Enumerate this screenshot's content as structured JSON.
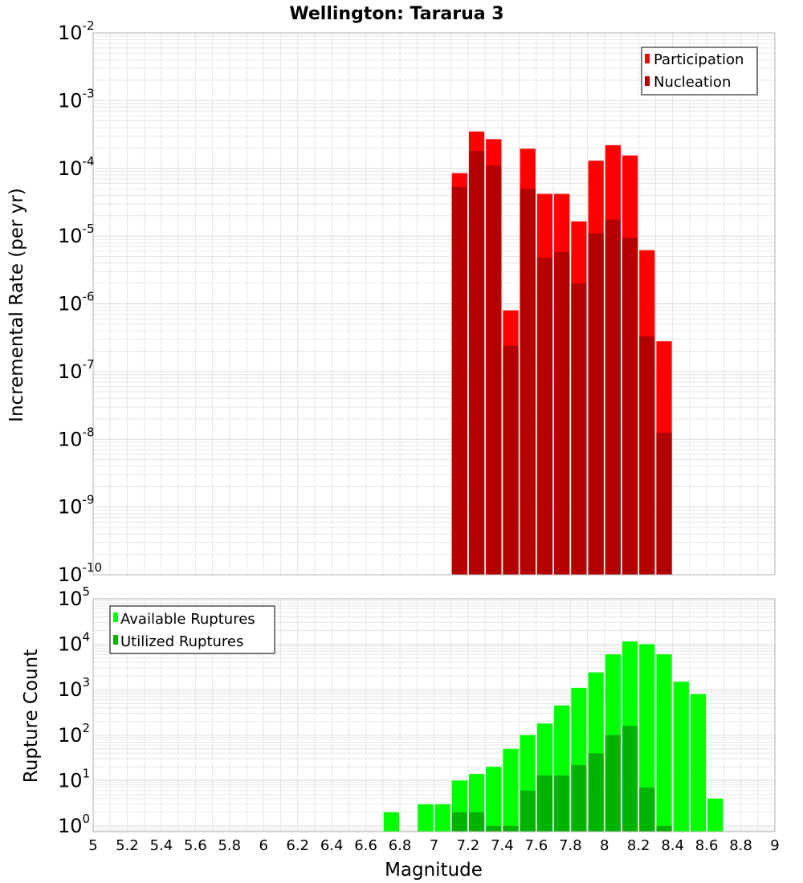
{
  "page": {
    "title": "Wellington: Tararua 3"
  },
  "colors": {
    "participation": "#ff0000",
    "nucleation": "#b30000",
    "available": "#00ff00",
    "utilized": "#00b300",
    "grid": "#e6e6e6",
    "frame": "#b0b0b0"
  },
  "chart_data": [
    {
      "type": "bar",
      "ylabel": "Incremental Rate (per yr)",
      "xlim": [
        5,
        9
      ],
      "ylim": [
        1e-10,
        0.01
      ],
      "yscale": "log",
      "yticks": [
        {
          "base": "10",
          "exp": "-10",
          "v": 1e-10
        },
        {
          "base": "10",
          "exp": "-9",
          "v": 1e-09
        },
        {
          "base": "10",
          "exp": "-8",
          "v": 1e-08
        },
        {
          "base": "10",
          "exp": "-7",
          "v": 1e-07
        },
        {
          "base": "10",
          "exp": "-6",
          "v": 1e-06
        },
        {
          "base": "10",
          "exp": "-5",
          "v": 1e-05
        },
        {
          "base": "10",
          "exp": "-4",
          "v": 0.0001
        },
        {
          "base": "10",
          "exp": "-3",
          "v": 0.001
        },
        {
          "base": "10",
          "exp": "-2",
          "v": 0.01
        }
      ],
      "grid": true,
      "legend_position": "top-right",
      "x": [
        7.15,
        7.25,
        7.35,
        7.45,
        7.55,
        7.65,
        7.75,
        7.85,
        7.95,
        8.05,
        8.15,
        8.25,
        8.35
      ],
      "series": [
        {
          "name": "Participation",
          "values": [
            8.5e-05,
            0.00035,
            0.00027,
            8e-07,
            0.000195,
            4.2e-05,
            4.2e-05,
            1.65e-05,
            0.00013,
            0.00022,
            0.000155,
            6.2e-06,
            2.8e-07
          ]
        },
        {
          "name": "Nucleation",
          "values": [
            5.3e-05,
            0.00018,
            0.00011,
            2.4e-07,
            5e-05,
            4.8e-06,
            5.8e-06,
            2e-06,
            1.1e-05,
            1.75e-05,
            9.5e-06,
            3.3e-07,
            1.25e-08
          ]
        }
      ]
    },
    {
      "type": "bar",
      "xlabel": "Magnitude",
      "ylabel": "Rupture Count",
      "xlim": [
        5,
        9
      ],
      "xticks": [
        "5",
        "5.2",
        "5.4",
        "5.6",
        "5.8",
        "6",
        "6.2",
        "6.4",
        "6.6",
        "6.8",
        "7",
        "7.2",
        "7.4",
        "7.6",
        "7.8",
        "8",
        "8.2",
        "8.4",
        "8.6",
        "8.8",
        "9"
      ],
      "ylim": [
        0.75,
        100000
      ],
      "yscale": "log",
      "yticks": [
        {
          "base": "10",
          "exp": "0",
          "v": 1
        },
        {
          "base": "10",
          "exp": "1",
          "v": 10
        },
        {
          "base": "10",
          "exp": "2",
          "v": 100
        },
        {
          "base": "10",
          "exp": "3",
          "v": 1000
        },
        {
          "base": "10",
          "exp": "4",
          "v": 10000
        },
        {
          "base": "10",
          "exp": "5",
          "v": 100000
        }
      ],
      "grid": true,
      "legend_position": "top-left",
      "x": [
        6.75,
        6.95,
        7.05,
        7.15,
        7.25,
        7.35,
        7.45,
        7.55,
        7.65,
        7.75,
        7.85,
        7.95,
        8.05,
        8.15,
        8.25,
        8.35,
        8.45,
        8.55,
        8.65
      ],
      "series": [
        {
          "name": "Available Ruptures",
          "values": [
            2,
            3,
            3,
            10,
            14,
            20,
            50,
            100,
            180,
            450,
            1100,
            2400,
            6000,
            11500,
            10000,
            6000,
            1500,
            800,
            4
          ]
        },
        {
          "name": "Utilized Ruptures",
          "values": [
            0,
            0,
            0,
            2,
            2,
            1,
            1,
            6,
            13,
            13,
            22,
            40,
            100,
            160,
            7,
            1,
            0,
            0,
            0
          ]
        }
      ]
    }
  ]
}
